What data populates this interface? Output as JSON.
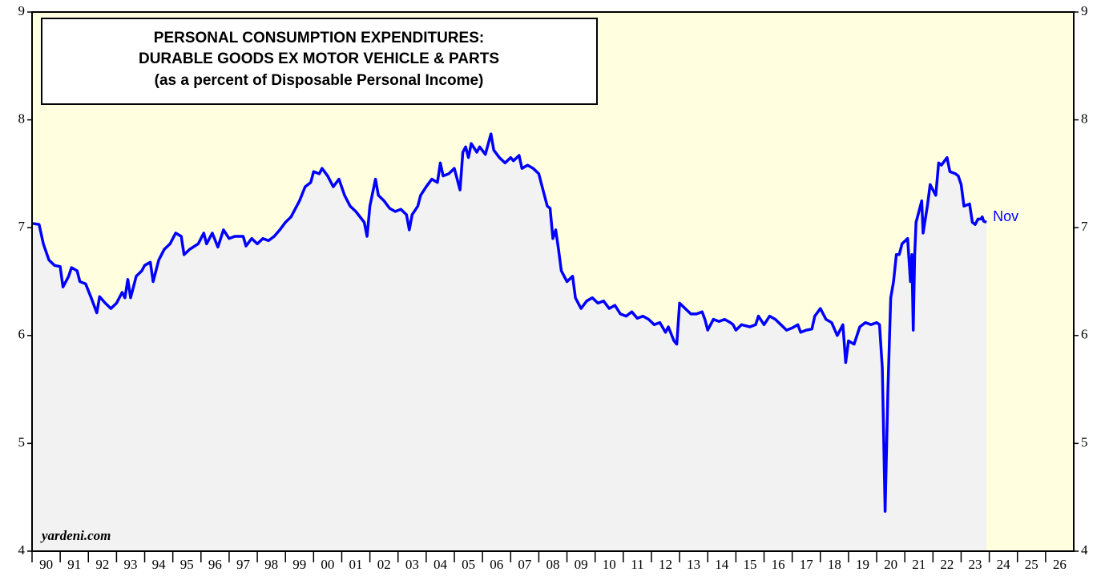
{
  "chart_data": {
    "type": "line",
    "title_lines": [
      "PERSONAL CONSUMPTION EXPENDITURES:",
      "DURABLE GOODS EX MOTOR VEHICLE & PARTS",
      "(as a percent of Disposable Personal Income)"
    ],
    "source": "yardeni.com",
    "annotation": "Nov",
    "color": "#0000ff",
    "fill_color": "#f2f2f2",
    "background_color": "#ffffe0",
    "xlim": [
      1990,
      2027
    ],
    "xticks": [
      {
        "value": 1990,
        "label": "90"
      },
      {
        "value": 1991,
        "label": "91"
      },
      {
        "value": 1992,
        "label": "92"
      },
      {
        "value": 1993,
        "label": "93"
      },
      {
        "value": 1994,
        "label": "94"
      },
      {
        "value": 1995,
        "label": "95"
      },
      {
        "value": 1996,
        "label": "96"
      },
      {
        "value": 1997,
        "label": "97"
      },
      {
        "value": 1998,
        "label": "98"
      },
      {
        "value": 1999,
        "label": "99"
      },
      {
        "value": 2000,
        "label": "00"
      },
      {
        "value": 2001,
        "label": "01"
      },
      {
        "value": 2002,
        "label": "02"
      },
      {
        "value": 2003,
        "label": "03"
      },
      {
        "value": 2004,
        "label": "04"
      },
      {
        "value": 2005,
        "label": "05"
      },
      {
        "value": 2006,
        "label": "06"
      },
      {
        "value": 2007,
        "label": "07"
      },
      {
        "value": 2008,
        "label": "08"
      },
      {
        "value": 2009,
        "label": "09"
      },
      {
        "value": 2010,
        "label": "10"
      },
      {
        "value": 2011,
        "label": "11"
      },
      {
        "value": 2012,
        "label": "12"
      },
      {
        "value": 2013,
        "label": "13"
      },
      {
        "value": 2014,
        "label": "14"
      },
      {
        "value": 2015,
        "label": "15"
      },
      {
        "value": 2016,
        "label": "16"
      },
      {
        "value": 2017,
        "label": "17"
      },
      {
        "value": 2018,
        "label": "18"
      },
      {
        "value": 2019,
        "label": "19"
      },
      {
        "value": 2020,
        "label": "20"
      },
      {
        "value": 2021,
        "label": "21"
      },
      {
        "value": 2022,
        "label": "22"
      },
      {
        "value": 2023,
        "label": "23"
      },
      {
        "value": 2024,
        "label": "24"
      },
      {
        "value": 2025,
        "label": "25"
      },
      {
        "value": 2026,
        "label": "26"
      }
    ],
    "ylim": [
      4,
      9
    ],
    "yticks": [
      4,
      5,
      6,
      7,
      8,
      9
    ],
    "x": [
      1990.0,
      1990.25,
      1990.4,
      1990.6,
      1990.8,
      1991.0,
      1991.1,
      1991.3,
      1991.4,
      1991.6,
      1991.7,
      1991.9,
      1992.1,
      1992.3,
      1992.4,
      1992.6,
      1992.8,
      1993.0,
      1993.2,
      1993.3,
      1993.4,
      1993.5,
      1993.7,
      1993.9,
      1994.0,
      1994.2,
      1994.3,
      1994.5,
      1994.7,
      1994.9,
      1995.1,
      1995.3,
      1995.4,
      1995.6,
      1995.9,
      1996.1,
      1996.2,
      1996.4,
      1996.6,
      1996.8,
      1997.0,
      1997.2,
      1997.5,
      1997.6,
      1997.8,
      1998.0,
      1998.2,
      1998.4,
      1998.6,
      1998.8,
      1999.0,
      1999.2,
      1999.5,
      1999.7,
      1999.9,
      2000.0,
      2000.2,
      2000.3,
      2000.5,
      2000.7,
      2000.9,
      2001.1,
      2001.3,
      2001.5,
      2001.8,
      2001.9,
      2002.0,
      2002.2,
      2002.3,
      2002.5,
      2002.7,
      2002.9,
      2003.1,
      2003.3,
      2003.4,
      2003.5,
      2003.7,
      2003.8,
      2004.0,
      2004.2,
      2004.4,
      2004.5,
      2004.6,
      2004.8,
      2005.0,
      2005.2,
      2005.3,
      2005.4,
      2005.5,
      2005.6,
      2005.8,
      2005.9,
      2006.1,
      2006.3,
      2006.4,
      2006.6,
      2006.8,
      2007.0,
      2007.1,
      2007.3,
      2007.4,
      2007.6,
      2007.8,
      2008.0,
      2008.1,
      2008.3,
      2008.4,
      2008.5,
      2008.6,
      2008.7,
      2008.8,
      2009.0,
      2009.2,
      2009.3,
      2009.5,
      2009.7,
      2009.9,
      2010.1,
      2010.3,
      2010.5,
      2010.7,
      2010.9,
      2011.1,
      2011.3,
      2011.5,
      2011.7,
      2011.9,
      2012.1,
      2012.3,
      2012.5,
      2012.6,
      2012.8,
      2012.9,
      2013.0,
      2013.2,
      2013.4,
      2013.6,
      2013.8,
      2013.9,
      2014.0,
      2014.2,
      2014.4,
      2014.6,
      2014.8,
      2014.9,
      2015.0,
      2015.2,
      2015.5,
      2015.7,
      2015.8,
      2016.0,
      2016.2,
      2016.4,
      2016.6,
      2016.8,
      2017.0,
      2017.2,
      2017.3,
      2017.5,
      2017.7,
      2017.8,
      2018.0,
      2018.2,
      2018.4,
      2018.6,
      2018.8,
      2018.9,
      2019.0,
      2019.2,
      2019.4,
      2019.6,
      2019.8,
      2020.0,
      2020.1,
      2020.2,
      2020.3,
      2020.4,
      2020.5,
      2020.6,
      2020.7,
      2020.8,
      2020.9,
      2021.1,
      2021.2,
      2021.25,
      2021.3,
      2021.35,
      2021.4,
      2021.5,
      2021.6,
      2021.65,
      2021.8,
      2021.9,
      2022.1,
      2022.2,
      2022.3,
      2022.5,
      2022.6,
      2022.8,
      2022.9,
      2023.0,
      2023.1,
      2023.3,
      2023.4,
      2023.5,
      2023.6,
      2023.7,
      2023.75,
      2023.8,
      2023.9
    ],
    "values": [
      7.04,
      7.03,
      6.85,
      6.7,
      6.65,
      6.64,
      6.45,
      6.55,
      6.63,
      6.6,
      6.5,
      6.48,
      6.35,
      6.21,
      6.36,
      6.3,
      6.25,
      6.3,
      6.4,
      6.35,
      6.52,
      6.35,
      6.55,
      6.6,
      6.65,
      6.68,
      6.5,
      6.7,
      6.8,
      6.85,
      6.95,
      6.92,
      6.75,
      6.8,
      6.85,
      6.95,
      6.85,
      6.95,
      6.82,
      6.98,
      6.9,
      6.92,
      6.92,
      6.83,
      6.9,
      6.85,
      6.9,
      6.88,
      6.92,
      6.98,
      7.05,
      7.1,
      7.25,
      7.38,
      7.42,
      7.52,
      7.5,
      7.55,
      7.48,
      7.38,
      7.45,
      7.3,
      7.2,
      7.15,
      7.05,
      6.92,
      7.2,
      7.45,
      7.3,
      7.25,
      7.18,
      7.15,
      7.17,
      7.12,
      6.98,
      7.12,
      7.2,
      7.3,
      7.38,
      7.45,
      7.42,
      7.6,
      7.48,
      7.5,
      7.55,
      7.35,
      7.7,
      7.75,
      7.65,
      7.78,
      7.7,
      7.75,
      7.68,
      7.87,
      7.72,
      7.65,
      7.6,
      7.65,
      7.62,
      7.67,
      7.55,
      7.58,
      7.55,
      7.5,
      7.4,
      7.2,
      7.18,
      6.9,
      6.98,
      6.8,
      6.6,
      6.5,
      6.55,
      6.35,
      6.25,
      6.32,
      6.35,
      6.3,
      6.32,
      6.25,
      6.28,
      6.2,
      6.18,
      6.22,
      6.16,
      6.18,
      6.15,
      6.1,
      6.12,
      6.03,
      6.08,
      5.95,
      5.92,
      6.3,
      6.25,
      6.2,
      6.2,
      6.22,
      6.15,
      6.05,
      6.15,
      6.13,
      6.15,
      6.12,
      6.1,
      6.05,
      6.1,
      6.08,
      6.1,
      6.18,
      6.1,
      6.18,
      6.15,
      6.1,
      6.05,
      6.07,
      6.1,
      6.03,
      6.05,
      6.06,
      6.18,
      6.25,
      6.15,
      6.12,
      6.0,
      6.1,
      5.75,
      5.95,
      5.92,
      6.08,
      6.12,
      6.1,
      6.12,
      6.1,
      5.7,
      4.37,
      5.5,
      6.35,
      6.5,
      6.75,
      6.75,
      6.85,
      6.9,
      6.5,
      6.75,
      6.05,
      6.75,
      7.05,
      7.15,
      7.25,
      6.95,
      7.2,
      7.4,
      7.3,
      7.6,
      7.58,
      7.65,
      7.52,
      7.5,
      7.48,
      7.4,
      7.2,
      7.22,
      7.05,
      7.03,
      7.08,
      7.08,
      7.1,
      7.06,
      7.05
    ]
  }
}
